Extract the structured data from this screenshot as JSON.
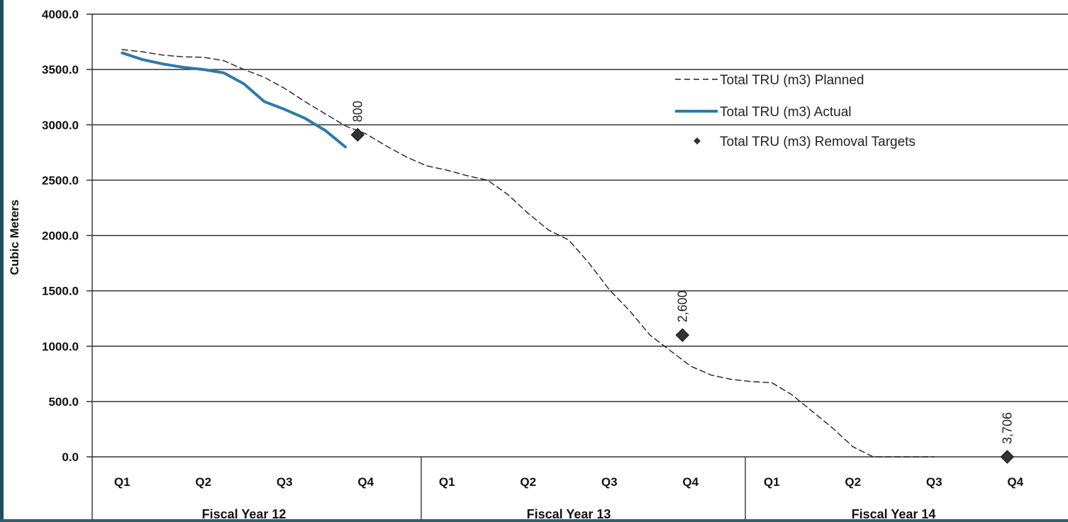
{
  "chart_data": {
    "type": "line",
    "ylabel": "Cubic Meters",
    "ylim": [
      0,
      4000
    ],
    "yticks": [
      "4000.0",
      "3500.0",
      "3000.0",
      "2500.0",
      "2000.0",
      "1500.0",
      "1000.0",
      "500.0",
      "0.0"
    ],
    "ytick_values": [
      4000,
      3500,
      3000,
      2500,
      2000,
      1500,
      1000,
      500,
      0
    ],
    "categories": [
      "Q1",
      "Q2",
      "Q3",
      "Q4",
      "Q1",
      "Q2",
      "Q3",
      "Q4",
      "Q1",
      "Q2",
      "Q3",
      "Q4"
    ],
    "category_groups": [
      {
        "label": "Fiscal Year 12",
        "span": [
          0,
          3
        ]
      },
      {
        "label": "Fiscal Year 13",
        "span": [
          4,
          7
        ]
      },
      {
        "label": "Fiscal Year 14",
        "span": [
          8,
          11
        ]
      }
    ],
    "grid": "horizontal",
    "legend_position": "upper-right",
    "series": [
      {
        "name": "Total TRU (m3) Planned",
        "style": "dashed",
        "color": "#222222",
        "points": [
          [
            0.0,
            3680
          ],
          [
            0.25,
            3660
          ],
          [
            0.5,
            3630
          ],
          [
            0.75,
            3615
          ],
          [
            1.0,
            3610
          ],
          [
            1.25,
            3580
          ],
          [
            1.5,
            3500
          ],
          [
            1.75,
            3430
          ],
          [
            2.0,
            3330
          ],
          [
            2.25,
            3210
          ],
          [
            2.5,
            3100
          ],
          [
            2.75,
            2990
          ],
          [
            3.0,
            2920
          ],
          [
            3.25,
            2810
          ],
          [
            3.5,
            2710
          ],
          [
            3.75,
            2630
          ],
          [
            4.0,
            2590
          ],
          [
            4.25,
            2540
          ],
          [
            4.5,
            2500
          ],
          [
            4.75,
            2370
          ],
          [
            5.0,
            2200
          ],
          [
            5.25,
            2050
          ],
          [
            5.5,
            1960
          ],
          [
            5.75,
            1750
          ],
          [
            6.0,
            1510
          ],
          [
            6.25,
            1320
          ],
          [
            6.5,
            1100
          ],
          [
            6.75,
            960
          ],
          [
            7.0,
            820
          ],
          [
            7.25,
            740
          ],
          [
            7.5,
            700
          ],
          [
            7.75,
            680
          ],
          [
            8.0,
            670
          ],
          [
            8.25,
            560
          ],
          [
            8.5,
            410
          ],
          [
            8.75,
            260
          ],
          [
            9.0,
            90
          ],
          [
            9.25,
            0
          ],
          [
            9.5,
            0
          ],
          [
            9.75,
            0
          ],
          [
            10.0,
            0
          ]
        ]
      },
      {
        "name": "Total TRU (m3) Actual",
        "style": "solid",
        "color": "#2e7aa8",
        "points": [
          [
            0.0,
            3650
          ],
          [
            0.25,
            3590
          ],
          [
            0.5,
            3550
          ],
          [
            0.75,
            3520
          ],
          [
            1.0,
            3500
          ],
          [
            1.25,
            3470
          ],
          [
            1.5,
            3370
          ],
          [
            1.75,
            3210
          ],
          [
            2.0,
            3140
          ],
          [
            2.25,
            3060
          ],
          [
            2.5,
            2950
          ],
          [
            2.75,
            2800
          ]
        ]
      },
      {
        "name": "Total TRU (m3) Removal Targets",
        "style": "marker",
        "marker": "diamond",
        "color": "#333333",
        "points": [
          [
            2.9,
            2910,
            "800"
          ],
          [
            6.9,
            1100,
            "2,600"
          ],
          [
            10.9,
            0,
            "3,706"
          ]
        ]
      }
    ]
  }
}
